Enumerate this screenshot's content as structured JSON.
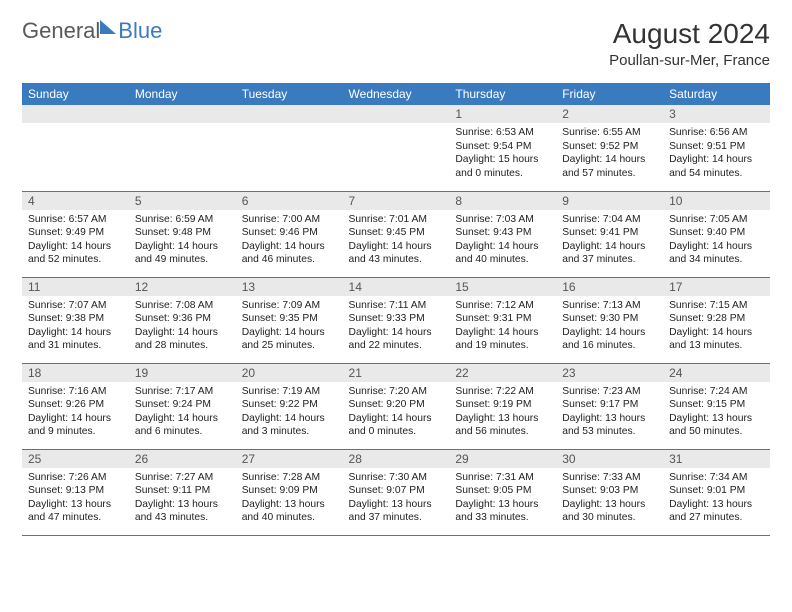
{
  "logo": {
    "word1": "General",
    "word2": "Blue"
  },
  "title": "August 2024",
  "subtitle": "Poullan-sur-Mer, France",
  "columns": [
    "Sunday",
    "Monday",
    "Tuesday",
    "Wednesday",
    "Thursday",
    "Friday",
    "Saturday"
  ],
  "style": {
    "header_bg": "#3a7bbf",
    "header_fg": "#ffffff",
    "daynum_bg": "#e9e9e9",
    "row_border": "#3a7bbf",
    "title_fontsize": 28,
    "subtitle_fontsize": 15,
    "col_header_fontsize": 12,
    "cell_fontsize": 10.3
  },
  "weeks": [
    [
      null,
      null,
      null,
      null,
      {
        "n": "1",
        "sr": "6:53 AM",
        "ss": "9:54 PM",
        "dl": "15 hours and 0 minutes."
      },
      {
        "n": "2",
        "sr": "6:55 AM",
        "ss": "9:52 PM",
        "dl": "14 hours and 57 minutes."
      },
      {
        "n": "3",
        "sr": "6:56 AM",
        "ss": "9:51 PM",
        "dl": "14 hours and 54 minutes."
      }
    ],
    [
      {
        "n": "4",
        "sr": "6:57 AM",
        "ss": "9:49 PM",
        "dl": "14 hours and 52 minutes."
      },
      {
        "n": "5",
        "sr": "6:59 AM",
        "ss": "9:48 PM",
        "dl": "14 hours and 49 minutes."
      },
      {
        "n": "6",
        "sr": "7:00 AM",
        "ss": "9:46 PM",
        "dl": "14 hours and 46 minutes."
      },
      {
        "n": "7",
        "sr": "7:01 AM",
        "ss": "9:45 PM",
        "dl": "14 hours and 43 minutes."
      },
      {
        "n": "8",
        "sr": "7:03 AM",
        "ss": "9:43 PM",
        "dl": "14 hours and 40 minutes."
      },
      {
        "n": "9",
        "sr": "7:04 AM",
        "ss": "9:41 PM",
        "dl": "14 hours and 37 minutes."
      },
      {
        "n": "10",
        "sr": "7:05 AM",
        "ss": "9:40 PM",
        "dl": "14 hours and 34 minutes."
      }
    ],
    [
      {
        "n": "11",
        "sr": "7:07 AM",
        "ss": "9:38 PM",
        "dl": "14 hours and 31 minutes."
      },
      {
        "n": "12",
        "sr": "7:08 AM",
        "ss": "9:36 PM",
        "dl": "14 hours and 28 minutes."
      },
      {
        "n": "13",
        "sr": "7:09 AM",
        "ss": "9:35 PM",
        "dl": "14 hours and 25 minutes."
      },
      {
        "n": "14",
        "sr": "7:11 AM",
        "ss": "9:33 PM",
        "dl": "14 hours and 22 minutes."
      },
      {
        "n": "15",
        "sr": "7:12 AM",
        "ss": "9:31 PM",
        "dl": "14 hours and 19 minutes."
      },
      {
        "n": "16",
        "sr": "7:13 AM",
        "ss": "9:30 PM",
        "dl": "14 hours and 16 minutes."
      },
      {
        "n": "17",
        "sr": "7:15 AM",
        "ss": "9:28 PM",
        "dl": "14 hours and 13 minutes."
      }
    ],
    [
      {
        "n": "18",
        "sr": "7:16 AM",
        "ss": "9:26 PM",
        "dl": "14 hours and 9 minutes."
      },
      {
        "n": "19",
        "sr": "7:17 AM",
        "ss": "9:24 PM",
        "dl": "14 hours and 6 minutes."
      },
      {
        "n": "20",
        "sr": "7:19 AM",
        "ss": "9:22 PM",
        "dl": "14 hours and 3 minutes."
      },
      {
        "n": "21",
        "sr": "7:20 AM",
        "ss": "9:20 PM",
        "dl": "14 hours and 0 minutes."
      },
      {
        "n": "22",
        "sr": "7:22 AM",
        "ss": "9:19 PM",
        "dl": "13 hours and 56 minutes."
      },
      {
        "n": "23",
        "sr": "7:23 AM",
        "ss": "9:17 PM",
        "dl": "13 hours and 53 minutes."
      },
      {
        "n": "24",
        "sr": "7:24 AM",
        "ss": "9:15 PM",
        "dl": "13 hours and 50 minutes."
      }
    ],
    [
      {
        "n": "25",
        "sr": "7:26 AM",
        "ss": "9:13 PM",
        "dl": "13 hours and 47 minutes."
      },
      {
        "n": "26",
        "sr": "7:27 AM",
        "ss": "9:11 PM",
        "dl": "13 hours and 43 minutes."
      },
      {
        "n": "27",
        "sr": "7:28 AM",
        "ss": "9:09 PM",
        "dl": "13 hours and 40 minutes."
      },
      {
        "n": "28",
        "sr": "7:30 AM",
        "ss": "9:07 PM",
        "dl": "13 hours and 37 minutes."
      },
      {
        "n": "29",
        "sr": "7:31 AM",
        "ss": "9:05 PM",
        "dl": "13 hours and 33 minutes."
      },
      {
        "n": "30",
        "sr": "7:33 AM",
        "ss": "9:03 PM",
        "dl": "13 hours and 30 minutes."
      },
      {
        "n": "31",
        "sr": "7:34 AM",
        "ss": "9:01 PM",
        "dl": "13 hours and 27 minutes."
      }
    ]
  ],
  "labels": {
    "sunrise": "Sunrise: ",
    "sunset": "Sunset: ",
    "daylight": "Daylight: "
  }
}
